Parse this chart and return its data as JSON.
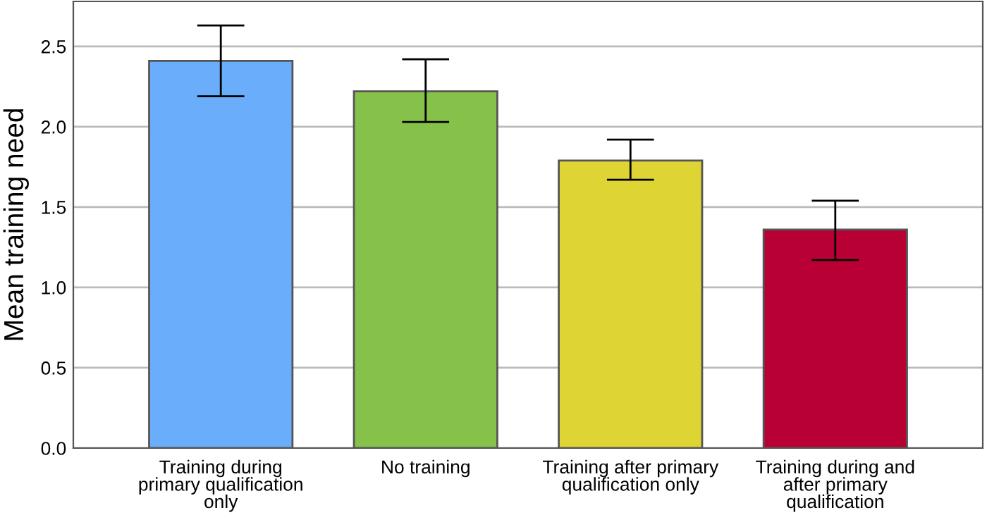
{
  "chart_data": {
    "type": "bar",
    "ylabel": "Mean training need",
    "categories": [
      "Training during\nprimary qualification\nonly",
      "No training",
      "Training after primary\nqualification only",
      "Training during and\nafter primary\nqualification"
    ],
    "values": [
      2.41,
      2.22,
      1.79,
      1.36
    ],
    "colors": [
      "#69adfb",
      "#86c24a",
      "#ded535",
      "#b80034"
    ],
    "errors": [
      [
        2.19,
        2.63
      ],
      [
        2.03,
        2.42
      ],
      [
        1.67,
        1.92
      ],
      [
        1.17,
        1.54
      ]
    ],
    "ylim": [
      0,
      2.78
    ],
    "yticks": [
      {
        "value": 0,
        "label": "0.0"
      },
      {
        "value": 0.5,
        "label": "0.5"
      },
      {
        "value": 1,
        "label": "1.0"
      },
      {
        "value": 1.5,
        "label": "1.5"
      },
      {
        "value": 2,
        "label": "2.0"
      },
      {
        "value": 2.5,
        "label": "2.5"
      }
    ],
    "grid": "y",
    "legend": false
  }
}
